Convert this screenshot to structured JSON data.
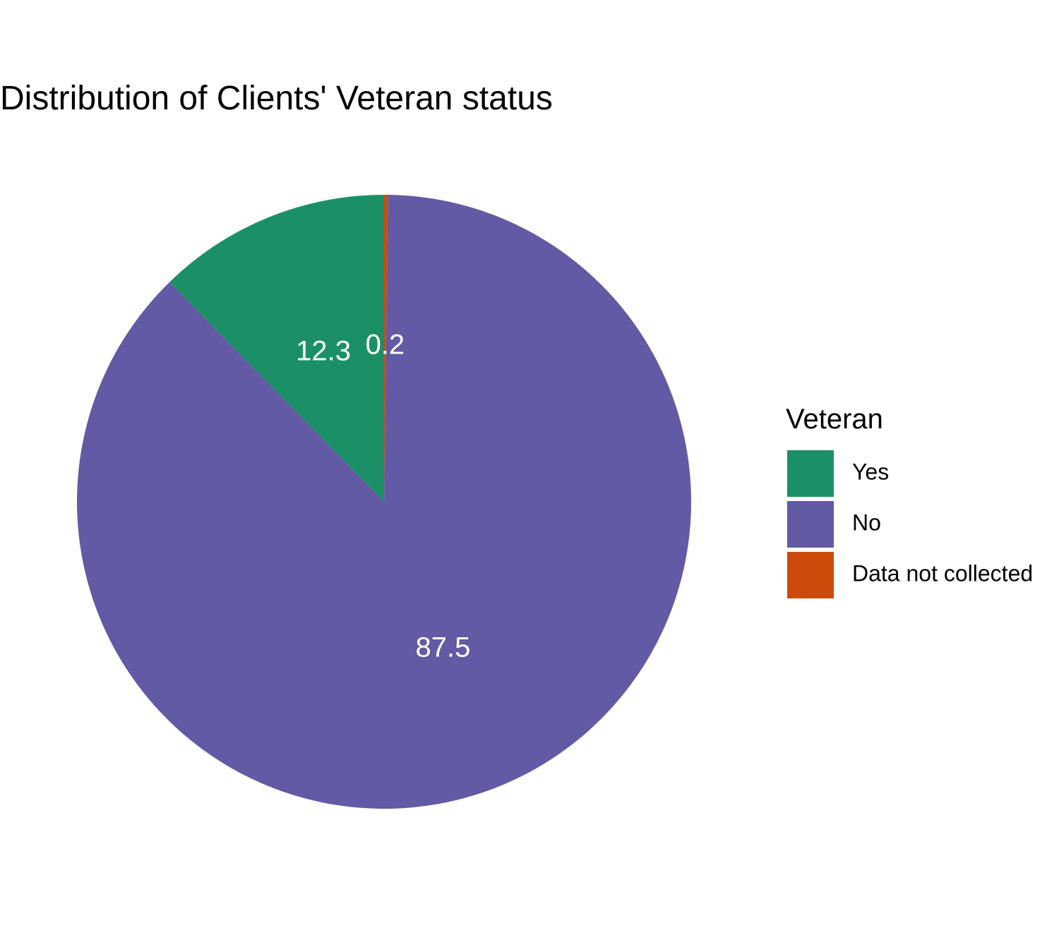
{
  "chart_data": {
    "type": "pie",
    "title": "Distribution of Clients' Veteran status",
    "legend": {
      "title": "Veteran",
      "placement": "right"
    },
    "categories": [
      "Yes",
      "No",
      "Data not collected"
    ],
    "values": [
      12.3,
      87.5,
      0.2
    ],
    "labels": [
      "12.3",
      "87.5",
      "0.2"
    ],
    "colors": [
      "#1b9066",
      "#625aa4",
      "#cc4b0a"
    ]
  }
}
